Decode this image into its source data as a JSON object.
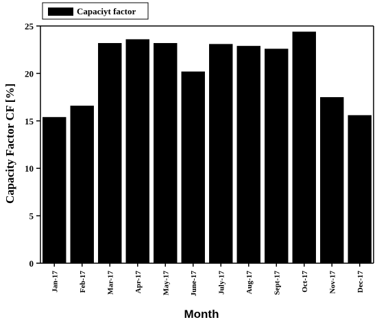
{
  "chart_data": {
    "type": "bar",
    "title": "",
    "xlabel": "Month",
    "ylabel": "Capacity Factor CF [%]",
    "categories": [
      "Jan-17",
      "Feb-17",
      "Mar-17",
      "Apr-17",
      "May-17",
      "June-17",
      "July-17",
      "Aug-17",
      "Sept-17",
      "Oct-17",
      "Nov-17",
      "Dec-17"
    ],
    "series": [
      {
        "name": "Capaciyt factor",
        "values": [
          15.4,
          16.6,
          23.2,
          23.6,
          23.2,
          20.2,
          23.1,
          22.9,
          22.6,
          24.4,
          17.5,
          15.6
        ],
        "color": "#000000"
      }
    ],
    "ylim": [
      0,
      25
    ],
    "yticks": [
      0,
      5,
      10,
      15,
      20,
      25
    ],
    "grid": false,
    "legend_position": "top-left"
  }
}
